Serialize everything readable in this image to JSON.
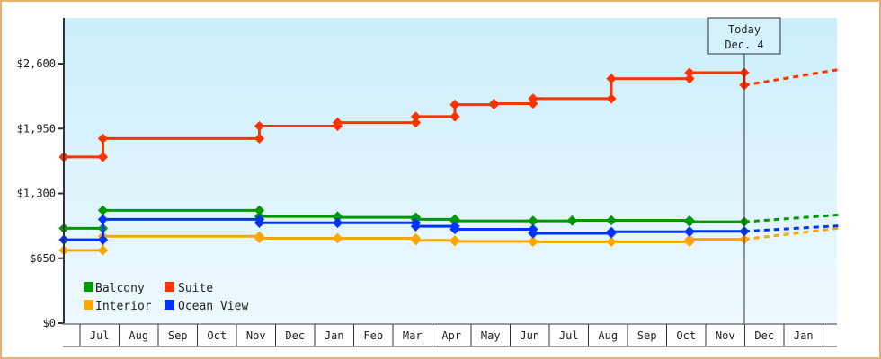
{
  "chart_data": {
    "type": "line",
    "title": "",
    "xlabel": "",
    "ylabel": "",
    "ylim": [
      0,
      2900
    ],
    "yticks": [
      "$0",
      "$650",
      "$1,300",
      "$1,950",
      "$2,600"
    ],
    "ytick_values": [
      0,
      650,
      1300,
      1950,
      2600
    ],
    "categories": [
      "Jul",
      "Aug",
      "Sep",
      "Oct",
      "Nov",
      "Dec",
      "Jan",
      "Feb",
      "Mar",
      "Apr",
      "May",
      "Jun",
      "Jul",
      "Aug",
      "Sep",
      "Oct",
      "Nov",
      "Dec",
      "Jan"
    ],
    "grid": false,
    "legend_position": "lower-left",
    "annotation": {
      "line1": "Today",
      "line2": "Dec. 4"
    },
    "series": [
      {
        "name": "Balcony",
        "color": "#009900",
        "steps": [
          [
            0,
            950
          ],
          [
            1.0,
            950
          ],
          [
            1.0,
            1130
          ],
          [
            5.0,
            1130
          ],
          [
            5.0,
            1070
          ],
          [
            7.0,
            1070
          ],
          [
            7.0,
            1060
          ],
          [
            9.0,
            1060
          ],
          [
            9.0,
            1040
          ],
          [
            10.0,
            1040
          ],
          [
            10.0,
            1025
          ],
          [
            12.0,
            1025
          ],
          [
            12.0,
            1025
          ],
          [
            13.0,
            1025
          ],
          [
            13.0,
            1030
          ],
          [
            14.0,
            1030
          ],
          [
            14.0,
            1030
          ],
          [
            16.0,
            1030
          ],
          [
            16.0,
            1015
          ],
          [
            17.4,
            1015
          ]
        ],
        "forecast": [
          [
            17.4,
            1015
          ],
          [
            19.8,
            1085
          ]
        ]
      },
      {
        "name": "Interior",
        "color": "#ffa500",
        "steps": [
          [
            0,
            730
          ],
          [
            1.0,
            730
          ],
          [
            1.0,
            870
          ],
          [
            5.0,
            870
          ],
          [
            5.0,
            850
          ],
          [
            7.0,
            850
          ],
          [
            7.0,
            850
          ],
          [
            9.0,
            850
          ],
          [
            9.0,
            830
          ],
          [
            10.0,
            830
          ],
          [
            10.0,
            820
          ],
          [
            12.0,
            820
          ],
          [
            12.0,
            815
          ],
          [
            14.0,
            815
          ],
          [
            14.0,
            815
          ],
          [
            16.0,
            815
          ],
          [
            16.0,
            840
          ],
          [
            17.4,
            840
          ]
        ],
        "forecast": [
          [
            17.4,
            840
          ],
          [
            19.8,
            950
          ]
        ]
      },
      {
        "name": "Suite",
        "color": "#ff3300",
        "steps": [
          [
            0,
            1665
          ],
          [
            1.0,
            1665
          ],
          [
            1.0,
            1850
          ],
          [
            5.0,
            1850
          ],
          [
            5.0,
            1975
          ],
          [
            7.0,
            1975
          ],
          [
            7.0,
            2010
          ],
          [
            9.0,
            2010
          ],
          [
            9.0,
            2070
          ],
          [
            10.0,
            2070
          ],
          [
            10.0,
            2190
          ],
          [
            11.0,
            2190
          ],
          [
            11.0,
            2200
          ],
          [
            12.0,
            2200
          ],
          [
            12.0,
            2250
          ],
          [
            14.0,
            2250
          ],
          [
            14.0,
            2450
          ],
          [
            16.0,
            2450
          ],
          [
            16.0,
            2510
          ],
          [
            17.4,
            2510
          ],
          [
            17.4,
            2385
          ]
        ],
        "forecast": [
          [
            17.4,
            2385
          ],
          [
            19.8,
            2540
          ]
        ]
      },
      {
        "name": "Ocean View",
        "color": "#0033ff",
        "steps": [
          [
            0,
            835
          ],
          [
            1.0,
            835
          ],
          [
            1.0,
            1040
          ],
          [
            5.0,
            1040
          ],
          [
            5.0,
            1005
          ],
          [
            7.0,
            1005
          ],
          [
            7.0,
            1005
          ],
          [
            9.0,
            1005
          ],
          [
            9.0,
            970
          ],
          [
            10.0,
            970
          ],
          [
            10.0,
            940
          ],
          [
            12.0,
            940
          ],
          [
            12.0,
            900
          ],
          [
            14.0,
            900
          ],
          [
            14.0,
            915
          ],
          [
            16.0,
            915
          ],
          [
            16.0,
            920
          ],
          [
            17.4,
            920
          ]
        ],
        "forecast": [
          [
            17.4,
            920
          ],
          [
            19.8,
            975
          ]
        ]
      }
    ]
  },
  "legend": {
    "items": [
      {
        "label": "Balcony",
        "color": "#009900"
      },
      {
        "label": "Suite",
        "color": "#ff3300"
      },
      {
        "label": "Interior",
        "color": "#ffa500"
      },
      {
        "label": "Ocean View",
        "color": "#0033ff"
      }
    ]
  },
  "today": {
    "line1": "Today",
    "line2": "Dec. 4"
  }
}
